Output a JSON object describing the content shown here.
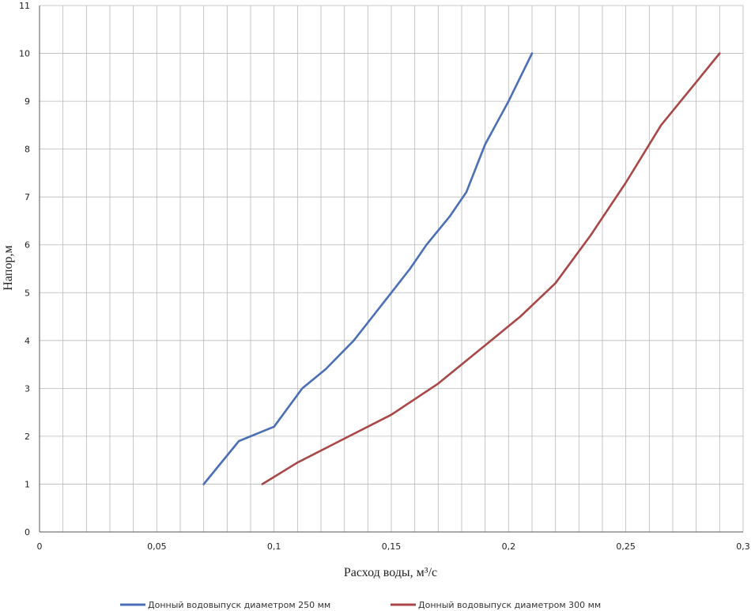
{
  "chart_data": {
    "type": "line",
    "xlabel": "Расход воды, м³/с",
    "ylabel": "Напор,м",
    "xlim": [
      0,
      0.3
    ],
    "ylim": [
      0,
      11
    ],
    "grid": true,
    "legend_position": "bottom",
    "x_ticks": [
      {
        "value": 0,
        "label": "0"
      },
      {
        "value": 0.05,
        "label": "0,05"
      },
      {
        "value": 0.1,
        "label": "0,1"
      },
      {
        "value": 0.15,
        "label": "0,15"
      },
      {
        "value": 0.2,
        "label": "0,2"
      },
      {
        "value": 0.25,
        "label": "0,25"
      },
      {
        "value": 0.3,
        "label": "0,3"
      }
    ],
    "y_ticks": [
      {
        "value": 0,
        "label": "0"
      },
      {
        "value": 1,
        "label": "1"
      },
      {
        "value": 2,
        "label": "2"
      },
      {
        "value": 3,
        "label": "3"
      },
      {
        "value": 4,
        "label": "4"
      },
      {
        "value": 5,
        "label": "5"
      },
      {
        "value": 6,
        "label": "6"
      },
      {
        "value": 7,
        "label": "7"
      },
      {
        "value": 8,
        "label": "8"
      },
      {
        "value": 9,
        "label": "9"
      },
      {
        "value": 10,
        "label": "10"
      },
      {
        "value": 11,
        "label": "11"
      }
    ],
    "series": [
      {
        "name": "Донный водовыпуск диаметром 250 мм",
        "color": "#4a6fb5",
        "x": [
          0.07,
          0.085,
          0.1,
          0.112,
          0.122,
          0.134,
          0.142,
          0.15,
          0.158,
          0.165,
          0.175,
          0.182,
          0.19,
          0.2,
          0.21
        ],
        "y": [
          1,
          1.9,
          2.2,
          3.0,
          3.4,
          4.0,
          4.5,
          5.0,
          5.5,
          6.0,
          6.6,
          7.1,
          8.1,
          9.0,
          10.0
        ]
      },
      {
        "name": "Донный водовыпуск диаметром 300 мм",
        "color": "#a94646",
        "x": [
          0.095,
          0.11,
          0.13,
          0.15,
          0.17,
          0.19,
          0.205,
          0.22,
          0.235,
          0.25,
          0.265,
          0.28,
          0.29
        ],
        "y": [
          1,
          1.45,
          1.95,
          2.45,
          3.1,
          3.9,
          4.5,
          5.2,
          6.2,
          7.3,
          8.5,
          9.4,
          10.0
        ]
      }
    ]
  }
}
